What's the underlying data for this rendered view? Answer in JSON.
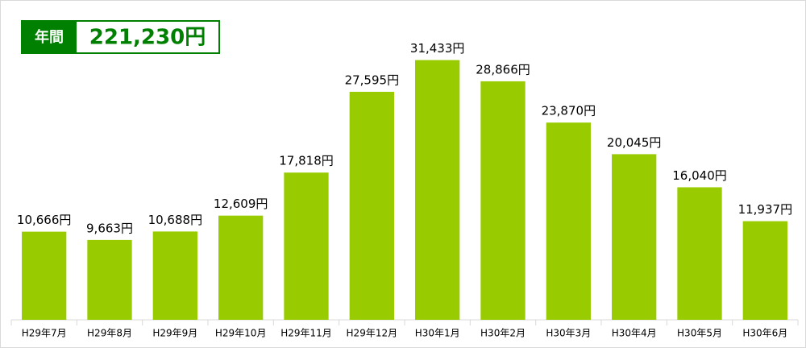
{
  "chart_data": {
    "type": "bar",
    "annotation": {
      "label": "年間",
      "text": "221,230円"
    },
    "categories": [
      "H29年7月",
      "H29年8月",
      "H29年9月",
      "H29年10月",
      "H29年11月",
      "H29年12月",
      "H30年1月",
      "H30年2月",
      "H30年3月",
      "H30年4月",
      "H30年5月",
      "H30年6月"
    ],
    "values": [
      10666,
      9663,
      10688,
      12609,
      17818,
      27595,
      31433,
      28866,
      23870,
      20045,
      16040,
      11937
    ],
    "value_labels": [
      "10,666円",
      "9,663円",
      "10,688円",
      "12,609円",
      "17,818円",
      "27,595円",
      "31,433円",
      "28,866円",
      "23,870円",
      "20,045円",
      "16,040円",
      "11,937円"
    ],
    "color": "#99cc00",
    "ylim": [
      0,
      35000
    ]
  }
}
